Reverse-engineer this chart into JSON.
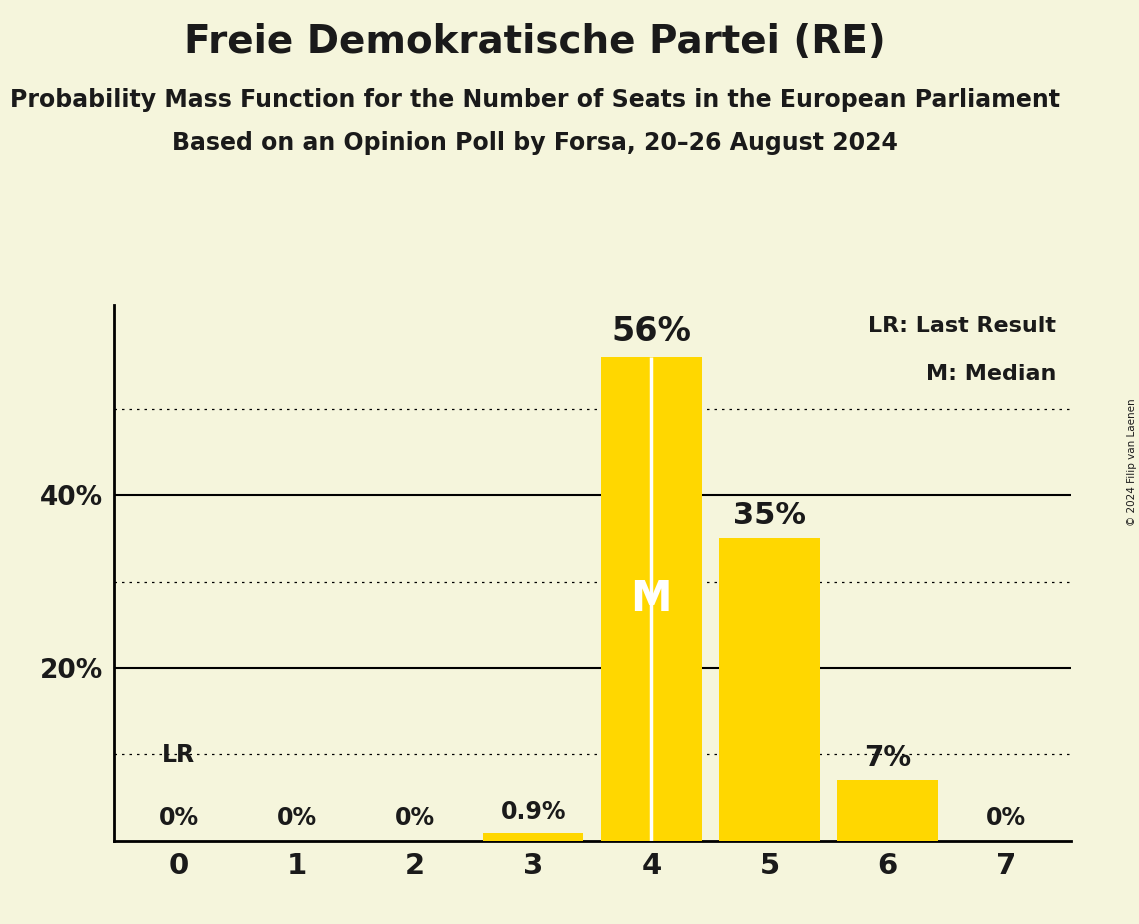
{
  "title": "Freie Demokratische Partei (RE)",
  "subtitle1": "Probability Mass Function for the Number of Seats in the European Parliament",
  "subtitle2": "Based on an Opinion Poll by Forsa, 20–26 August 2024",
  "copyright": "© 2024 Filip van Laenen",
  "categories": [
    0,
    1,
    2,
    3,
    4,
    5,
    6,
    7
  ],
  "values": [
    0.0,
    0.0,
    0.0,
    0.9,
    56.0,
    35.0,
    7.0,
    0.0
  ],
  "bar_color": "#FFD700",
  "background_color": "#F5F5DC",
  "text_color": "#1a1a1a",
  "median_seat": 4,
  "legend_lr": "LR: Last Result",
  "legend_m": "M: Median",
  "ylim": [
    0,
    62
  ],
  "bar_width": 0.85
}
